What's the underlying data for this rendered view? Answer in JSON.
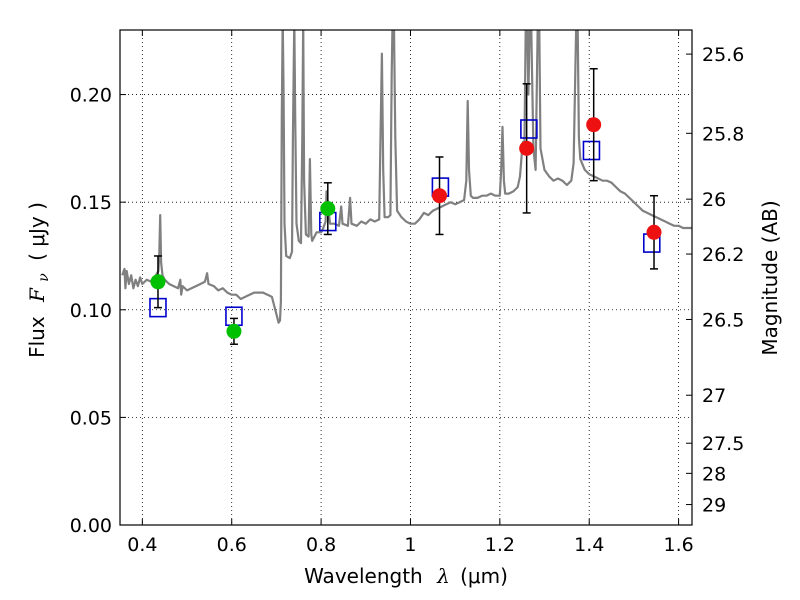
{
  "chart_data": {
    "type": "scatter",
    "xlabel_text": "Wavelength",
    "xlabel_symbol": "λ",
    "xlabel_unit": "(μm)",
    "ylabel_text": "Flux",
    "ylabel_symbol": "F",
    "ylabel_sub": "ν",
    "ylabel_unit": "( μJy )",
    "y2label": "Magnitude (AB)",
    "xlim": [
      0.35,
      1.63
    ],
    "ylim": [
      0.0,
      0.23
    ],
    "grid": true,
    "grid_style": "dotted",
    "x_ticks": [
      0.4,
      0.6,
      0.8,
      1.0,
      1.2,
      1.4,
      1.6
    ],
    "x_tick_labels": [
      "0.4",
      "0.6",
      "0.8",
      "1",
      "1.2",
      "1.4",
      "1.6"
    ],
    "y_ticks": [
      0.0,
      0.05,
      0.1,
      0.15,
      0.2
    ],
    "y_tick_labels": [
      "0.00",
      "0.05",
      "0.10",
      "0.15",
      "0.20"
    ],
    "y2_ticks": [
      {
        "label": "25.6",
        "flux": 0.2188
      },
      {
        "label": "25.8",
        "flux": 0.182
      },
      {
        "label": "26",
        "flux": 0.1514
      },
      {
        "label": "26.2",
        "flux": 0.1259
      },
      {
        "label": "26.5",
        "flux": 0.0955
      },
      {
        "label": "27",
        "flux": 0.0603
      },
      {
        "label": "27.5",
        "flux": 0.038
      },
      {
        "label": "28",
        "flux": 0.024
      },
      {
        "label": "29",
        "flux": 0.0095
      }
    ],
    "colors": {
      "model": "#808080",
      "green": "#00c000",
      "red": "#ee1111",
      "square": "#0000cc",
      "errorbar": "#000000"
    },
    "series": [
      {
        "marker": "line",
        "points": [
          [
            0.355,
            0.116
          ],
          [
            0.36,
            0.119
          ],
          [
            0.362,
            0.11
          ],
          [
            0.365,
            0.118
          ],
          [
            0.37,
            0.112
          ],
          [
            0.375,
            0.116
          ],
          [
            0.38,
            0.11
          ],
          [
            0.385,
            0.114
          ],
          [
            0.39,
            0.111
          ],
          [
            0.395,
            0.115
          ],
          [
            0.4,
            0.112
          ],
          [
            0.41,
            0.114
          ],
          [
            0.42,
            0.113
          ],
          [
            0.43,
            0.116
          ],
          [
            0.436,
            0.118
          ],
          [
            0.438,
            0.126
          ],
          [
            0.44,
            0.144
          ],
          [
            0.442,
            0.122
          ],
          [
            0.445,
            0.116
          ],
          [
            0.45,
            0.114
          ],
          [
            0.46,
            0.112
          ],
          [
            0.47,
            0.111
          ],
          [
            0.48,
            0.11
          ],
          [
            0.485,
            0.114
          ],
          [
            0.487,
            0.107
          ],
          [
            0.49,
            0.111
          ],
          [
            0.5,
            0.109
          ],
          [
            0.51,
            0.11
          ],
          [
            0.52,
            0.111
          ],
          [
            0.53,
            0.112
          ],
          [
            0.54,
            0.113
          ],
          [
            0.545,
            0.117
          ],
          [
            0.548,
            0.112
          ],
          [
            0.56,
            0.111
          ],
          [
            0.57,
            0.109
          ],
          [
            0.58,
            0.11
          ],
          [
            0.59,
            0.108
          ],
          [
            0.6,
            0.107
          ],
          [
            0.61,
            0.107
          ],
          [
            0.62,
            0.105
          ],
          [
            0.63,
            0.106
          ],
          [
            0.64,
            0.107
          ],
          [
            0.65,
            0.108
          ],
          [
            0.66,
            0.108
          ],
          [
            0.67,
            0.108
          ],
          [
            0.68,
            0.107
          ],
          [
            0.69,
            0.106
          ],
          [
            0.7,
            0.098
          ],
          [
            0.705,
            0.094
          ],
          [
            0.708,
            0.095
          ],
          [
            0.71,
            0.104
          ],
          [
            0.712,
            0.19
          ],
          [
            0.714,
            0.235
          ],
          [
            0.716,
            0.2
          ],
          [
            0.718,
            0.14
          ],
          [
            0.722,
            0.125
          ],
          [
            0.73,
            0.124
          ],
          [
            0.735,
            0.127
          ],
          [
            0.737,
            0.18
          ],
          [
            0.74,
            0.235
          ],
          [
            0.742,
            0.19
          ],
          [
            0.745,
            0.14
          ],
          [
            0.75,
            0.132
          ],
          [
            0.755,
            0.131
          ],
          [
            0.758,
            0.18
          ],
          [
            0.76,
            0.235
          ],
          [
            0.762,
            0.16
          ],
          [
            0.766,
            0.135
          ],
          [
            0.772,
            0.134
          ],
          [
            0.775,
            0.17
          ],
          [
            0.778,
            0.135
          ],
          [
            0.78,
            0.132
          ],
          [
            0.785,
            0.134
          ],
          [
            0.79,
            0.136
          ],
          [
            0.8,
            0.136
          ],
          [
            0.805,
            0.138
          ],
          [
            0.81,
            0.141
          ],
          [
            0.812,
            0.155
          ],
          [
            0.815,
            0.15
          ],
          [
            0.82,
            0.14
          ],
          [
            0.83,
            0.14
          ],
          [
            0.84,
            0.139
          ],
          [
            0.845,
            0.148
          ],
          [
            0.848,
            0.14
          ],
          [
            0.86,
            0.139
          ],
          [
            0.865,
            0.152
          ],
          [
            0.868,
            0.14
          ],
          [
            0.88,
            0.139
          ],
          [
            0.89,
            0.141
          ],
          [
            0.9,
            0.14
          ],
          [
            0.91,
            0.142
          ],
          [
            0.92,
            0.141
          ],
          [
            0.93,
            0.142
          ],
          [
            0.933,
            0.18
          ],
          [
            0.936,
            0.219
          ],
          [
            0.939,
            0.165
          ],
          [
            0.942,
            0.143
          ],
          [
            0.95,
            0.143
          ],
          [
            0.955,
            0.144
          ],
          [
            0.958,
            0.21
          ],
          [
            0.96,
            0.235
          ],
          [
            0.963,
            0.235
          ],
          [
            0.966,
            0.18
          ],
          [
            0.97,
            0.146
          ],
          [
            0.98,
            0.143
          ],
          [
            0.99,
            0.141
          ],
          [
            1.0,
            0.14
          ],
          [
            1.01,
            0.14
          ],
          [
            1.02,
            0.142
          ],
          [
            1.03,
            0.145
          ],
          [
            1.04,
            0.144
          ],
          [
            1.05,
            0.146
          ],
          [
            1.06,
            0.147
          ],
          [
            1.07,
            0.148
          ],
          [
            1.08,
            0.149
          ],
          [
            1.09,
            0.15
          ],
          [
            1.1,
            0.149
          ],
          [
            1.11,
            0.15
          ],
          [
            1.12,
            0.151
          ],
          [
            1.125,
            0.16
          ],
          [
            1.128,
            0.197
          ],
          [
            1.131,
            0.165
          ],
          [
            1.135,
            0.153
          ],
          [
            1.14,
            0.152
          ],
          [
            1.15,
            0.152
          ],
          [
            1.16,
            0.153
          ],
          [
            1.17,
            0.153
          ],
          [
            1.18,
            0.154
          ],
          [
            1.19,
            0.153
          ],
          [
            1.2,
            0.153
          ],
          [
            1.203,
            0.165
          ],
          [
            1.206,
            0.185
          ],
          [
            1.209,
            0.16
          ],
          [
            1.212,
            0.154
          ],
          [
            1.22,
            0.154
          ],
          [
            1.23,
            0.155
          ],
          [
            1.24,
            0.157
          ],
          [
            1.245,
            0.162
          ],
          [
            1.25,
            0.175
          ],
          [
            1.252,
            0.178
          ],
          [
            1.255,
            0.175
          ],
          [
            1.258,
            0.235
          ],
          [
            1.261,
            0.235
          ],
          [
            1.264,
            0.2
          ],
          [
            1.267,
            0.235
          ],
          [
            1.27,
            0.235
          ],
          [
            1.275,
            0.175
          ],
          [
            1.28,
            0.165
          ],
          [
            1.285,
            0.235
          ],
          [
            1.288,
            0.235
          ],
          [
            1.291,
            0.175
          ],
          [
            1.3,
            0.165
          ],
          [
            1.31,
            0.162
          ],
          [
            1.32,
            0.16
          ],
          [
            1.33,
            0.161
          ],
          [
            1.34,
            0.16
          ],
          [
            1.35,
            0.158
          ],
          [
            1.36,
            0.16
          ],
          [
            1.365,
            0.168
          ],
          [
            1.368,
            0.2
          ],
          [
            1.371,
            0.235
          ],
          [
            1.374,
            0.235
          ],
          [
            1.377,
            0.18
          ],
          [
            1.38,
            0.17
          ],
          [
            1.39,
            0.165
          ],
          [
            1.4,
            0.163
          ],
          [
            1.41,
            0.162
          ],
          [
            1.42,
            0.161
          ],
          [
            1.43,
            0.16
          ],
          [
            1.44,
            0.16
          ],
          [
            1.45,
            0.159
          ],
          [
            1.46,
            0.157
          ],
          [
            1.47,
            0.155
          ],
          [
            1.48,
            0.154
          ],
          [
            1.49,
            0.152
          ],
          [
            1.5,
            0.15
          ],
          [
            1.51,
            0.148
          ],
          [
            1.52,
            0.146
          ],
          [
            1.53,
            0.145
          ],
          [
            1.54,
            0.144
          ],
          [
            1.55,
            0.143
          ],
          [
            1.56,
            0.142
          ],
          [
            1.57,
            0.141
          ],
          [
            1.58,
            0.14
          ],
          [
            1.59,
            0.139
          ],
          [
            1.6,
            0.139
          ],
          [
            1.61,
            0.138
          ],
          [
            1.62,
            0.138
          ],
          [
            1.63,
            0.138
          ]
        ]
      },
      {
        "marker": "open-square",
        "points": [
          [
            0.435,
            0.101
          ],
          [
            0.605,
            0.097
          ],
          [
            0.815,
            0.141
          ],
          [
            1.067,
            0.157
          ],
          [
            1.265,
            0.184
          ],
          [
            1.405,
            0.174
          ],
          [
            1.54,
            0.131
          ]
        ]
      },
      {
        "marker": "filled-circle-green",
        "points": [
          {
            "x": 0.435,
            "y": 0.113,
            "err": [
              0.012,
              0.101,
              0.125
            ]
          },
          {
            "x": 0.605,
            "y": 0.09,
            "err": [
              0.006,
              0.084,
              0.096
            ]
          },
          {
            "x": 0.815,
            "y": 0.147,
            "err": [
              0.012,
              0.135,
              0.159
            ]
          }
        ]
      },
      {
        "marker": "filled-circle-red",
        "points": [
          {
            "x": 1.065,
            "y": 0.153,
            "err": [
              0.018,
              0.135,
              0.171
            ]
          },
          {
            "x": 1.26,
            "y": 0.175,
            "err": [
              0.03,
              0.145,
              0.205
            ]
          },
          {
            "x": 1.41,
            "y": 0.186,
            "err": [
              0.026,
              0.16,
              0.212
            ]
          },
          {
            "x": 1.545,
            "y": 0.136,
            "err": [
              0.017,
              0.119,
              0.153
            ]
          }
        ]
      }
    ]
  }
}
